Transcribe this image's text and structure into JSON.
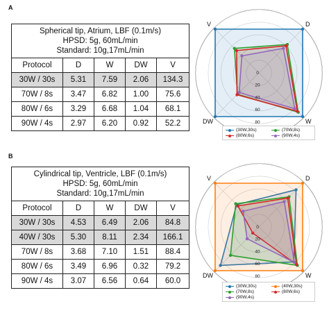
{
  "chart_data": [
    {
      "type": "radar",
      "panel_label": "A",
      "table": {
        "title_lines": [
          "Spherical tip, Atrium, LBF (0.1m/s)",
          "HPSD: 5g, 60mL/min",
          "Standard: 10g,17mL/min"
        ],
        "columns": [
          "Protocol",
          "D",
          "W",
          "DW",
          "V"
        ],
        "rows": [
          [
            "30W / 30s",
            "5.31",
            "7.59",
            "2.06",
            "134.3"
          ],
          [
            "70W / 8s",
            "3.47",
            "6.82",
            "1.00",
            "75.6"
          ],
          [
            "80W / 6s",
            "3.29",
            "6.68",
            "1.04",
            "68.1"
          ],
          [
            "90W / 4s",
            "2.97",
            "6.20",
            "0.92",
            "52.2"
          ]
        ],
        "shaded_rows": [
          0
        ]
      },
      "axes": [
        "D",
        "W",
        "DW",
        "V"
      ],
      "radial_ticks": [
        "0",
        "20",
        "40",
        "60",
        "80",
        "100"
      ],
      "rlim": [
        0,
        100
      ],
      "grid": true,
      "series": [
        {
          "name": "(30W,30s)",
          "color": "#1f77b4",
          "values": [
            100,
            100,
            100,
            100
          ]
        },
        {
          "name": "(70W,8s)",
          "color": "#2ca02c",
          "values": [
            65,
            90,
            49,
            56
          ]
        },
        {
          "name": "(80W,6s)",
          "color": "#d62728",
          "values": [
            62,
            88,
            50,
            51
          ]
        },
        {
          "name": "(90W,4s)",
          "color": "#9467bd",
          "values": [
            56,
            82,
            45,
            39
          ]
        }
      ]
    },
    {
      "type": "radar",
      "panel_label": "B",
      "table": {
        "title_lines": [
          "Cylindrical tip, Ventricle, LBF (0.1m/s)",
          "HPSD: 5g, 60mL/min",
          "Standard: 10g,17mL/min"
        ],
        "columns": [
          "Protocol",
          "D",
          "W",
          "DW",
          "V"
        ],
        "rows": [
          [
            "30W / 30s",
            "4.53",
            "6.49",
            "2.06",
            "84.8"
          ],
          [
            "40W / 30s",
            "5.30",
            "8.11",
            "2.34",
            "166.1"
          ],
          [
            "70W / 8s",
            "3.68",
            "7.10",
            "1.51",
            "88.4"
          ],
          [
            "80W / 6s",
            "3.49",
            "6.96",
            "0.32",
            "79.2"
          ],
          [
            "90W / 4s",
            "3.07",
            "6.56",
            "0.64",
            "60.0"
          ]
        ],
        "shaded_rows": [
          0,
          1
        ]
      },
      "axes": [
        "D",
        "W",
        "DW",
        "V"
      ],
      "radial_ticks": [
        "0",
        "20",
        "40",
        "60",
        "80",
        "100"
      ],
      "rlim": [
        0,
        100
      ],
      "grid": true,
      "series": [
        {
          "name": "(30W,30s)",
          "color": "#1f77b4",
          "values": [
            85,
            80,
            88,
            51
          ]
        },
        {
          "name": "(40W,30s)",
          "color": "#ff7f0e",
          "values": [
            100,
            100,
            100,
            100
          ]
        },
        {
          "name": "(70W,8s)",
          "color": "#2ca02c",
          "values": [
            69,
            88,
            65,
            53
          ]
        },
        {
          "name": "(80W,6s)",
          "color": "#d62728",
          "values": [
            66,
            86,
            14,
            48
          ]
        },
        {
          "name": "(90W,4s)",
          "color": "#9467bd",
          "values": [
            58,
            81,
            27,
            36
          ]
        }
      ]
    }
  ]
}
